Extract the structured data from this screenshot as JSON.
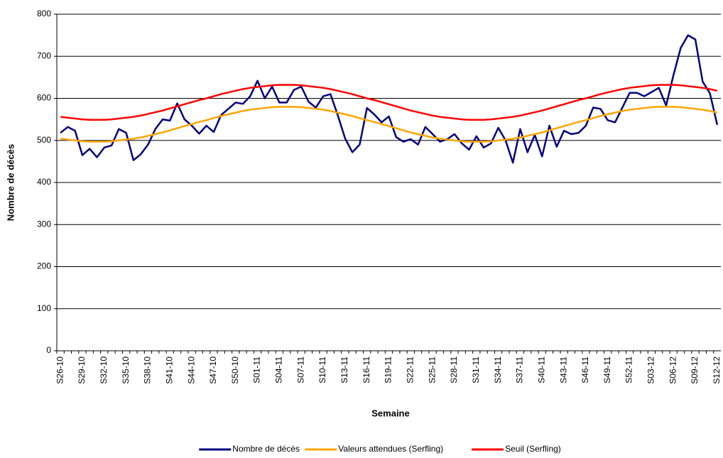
{
  "chart_data": {
    "type": "line",
    "x_label": "Semaine",
    "y_label": "Nombre de décès",
    "categories": [
      "S26-10",
      null,
      null,
      "S29-10",
      null,
      null,
      "S32-10",
      null,
      null,
      "S35-10",
      null,
      null,
      "S38-10",
      null,
      null,
      "S41-10",
      null,
      null,
      "S44-10",
      null,
      null,
      "S47-10",
      null,
      null,
      "S50-10",
      null,
      null,
      "S01-11",
      null,
      null,
      "S04-11",
      null,
      null,
      "S07-11",
      null,
      null,
      "S10-11",
      null,
      null,
      "S13-11",
      null,
      null,
      "S16-11",
      null,
      null,
      "S19-11",
      null,
      null,
      "S22-11",
      null,
      null,
      "S25-11",
      null,
      null,
      "S28-11",
      null,
      null,
      "S31-11",
      null,
      null,
      "S34-11",
      null,
      null,
      "S37-11",
      null,
      null,
      "S40-11",
      null,
      null,
      "S43-11",
      null,
      null,
      "S46-11",
      null,
      null,
      "S49-11",
      null,
      null,
      "S52-11",
      null,
      null,
      "S03-12",
      null,
      null,
      "S06-12",
      null,
      null,
      "S09-12",
      null,
      null,
      "S12-12"
    ],
    "series": [
      {
        "name": "Nombre de décès",
        "color": "#000080",
        "values": [
          518,
          532,
          523,
          465,
          480,
          460,
          483,
          488,
          527,
          518,
          453,
          467,
          490,
          527,
          550,
          547,
          588,
          550,
          535,
          516,
          535,
          520,
          560,
          575,
          590,
          587,
          605,
          642,
          600,
          628,
          590,
          590,
          620,
          628,
          592,
          578,
          605,
          610,
          560,
          505,
          472,
          490,
          577,
          562,
          543,
          557,
          508,
          497,
          503,
          490,
          532,
          515,
          497,
          503,
          515,
          493,
          478,
          510,
          483,
          493,
          530,
          500,
          447,
          527,
          472,
          513,
          462,
          535,
          485,
          523,
          515,
          518,
          535,
          578,
          575,
          548,
          543,
          578,
          613,
          613,
          605,
          615,
          625,
          583,
          655,
          720,
          750,
          740,
          640,
          612,
          537
        ]
      },
      {
        "name": "Valeurs attendues (Serfling)",
        "color": "#ffa500",
        "values": [
          504,
          502,
          500,
          498,
          497,
          497,
          497,
          498,
          500,
          502,
          504,
          507,
          511,
          515,
          519,
          524,
          529,
          534,
          539,
          544,
          548,
          553,
          558,
          562,
          566,
          570,
          573,
          575,
          577,
          579,
          580,
          580,
          580,
          579,
          577,
          575,
          573,
          570,
          566,
          562,
          558,
          553,
          548,
          544,
          539,
          534,
          529,
          524,
          519,
          515,
          511,
          507,
          504,
          502,
          500,
          498,
          497,
          497,
          497,
          498,
          500,
          502,
          504,
          507,
          511,
          515,
          519,
          524,
          529,
          534,
          539,
          544,
          548,
          553,
          558,
          562,
          566,
          570,
          573,
          575,
          577,
          579,
          580,
          580,
          580,
          579,
          577,
          575,
          573,
          570,
          566
        ]
      },
      {
        "name": "Seuil (Serfling)",
        "color": "#ff0000",
        "values": [
          556,
          554,
          552,
          550,
          549,
          549,
          549,
          550,
          552,
          554,
          556,
          559,
          563,
          567,
          571,
          576,
          581,
          586,
          591,
          596,
          600,
          605,
          610,
          614,
          618,
          622,
          625,
          627,
          629,
          631,
          632,
          632,
          632,
          631,
          629,
          627,
          625,
          622,
          618,
          614,
          610,
          605,
          600,
          596,
          591,
          586,
          581,
          576,
          571,
          567,
          563,
          559,
          556,
          554,
          552,
          550,
          549,
          549,
          549,
          550,
          552,
          554,
          556,
          559,
          563,
          567,
          571,
          576,
          581,
          586,
          591,
          596,
          600,
          605,
          610,
          614,
          618,
          622,
          625,
          627,
          629,
          631,
          632,
          632,
          632,
          631,
          629,
          627,
          625,
          622,
          618
        ]
      }
    ],
    "ylim": [
      0,
      800
    ],
    "yticks": [
      0,
      100,
      200,
      300,
      400,
      500,
      600,
      700,
      800
    ],
    "grid": true,
    "legend": "bottom"
  }
}
